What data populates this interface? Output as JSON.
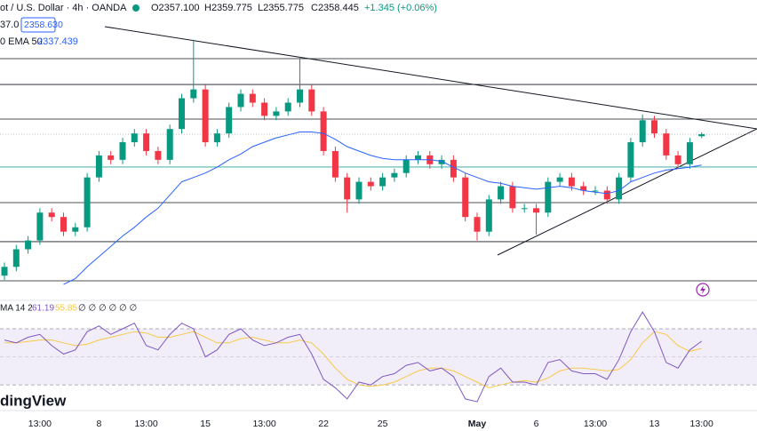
{
  "chart_data": {
    "type": "candlestick",
    "legend": {
      "symbol": "ot / U.S. Dollar · 4h · OANDA",
      "o": "O2357.100",
      "h": "H2359.775",
      "l": "L2355.775",
      "c": "C2358.445",
      "change": "+1.345 (+0.06%)",
      "line2": "37.0",
      "price_box": "2358.630",
      "ema_label": "0 EMA 50",
      "ema_value": "2337.439",
      "watermark": "dingView"
    },
    "categories": [
      null,
      null,
      null,
      "13:00",
      null,
      null,
      null,
      null,
      "8",
      null,
      null,
      null,
      "13:00",
      null,
      null,
      null,
      null,
      "15",
      null,
      null,
      null,
      null,
      "13:00",
      null,
      null,
      null,
      null,
      "22",
      null,
      null,
      null,
      null,
      "25",
      null,
      null,
      null,
      null,
      null,
      null,
      null,
      "May",
      null,
      null,
      null,
      null,
      "6",
      null,
      null,
      null,
      null,
      "13:00",
      null,
      null,
      null,
      null,
      "13",
      null,
      null,
      null,
      "13:00"
    ],
    "open": [
      2262,
      2268,
      2280,
      2286,
      2305,
      2302,
      2292,
      2295,
      2329,
      2344,
      2341,
      2353,
      2359,
      2347,
      2341,
      2362,
      2383,
      2389,
      2353,
      2359,
      2377,
      2386,
      2380,
      2371,
      2374,
      2380,
      2389,
      2374,
      2347,
      2329,
      2314,
      2326,
      2323,
      2329,
      2332,
      2341,
      2344,
      2338,
      2341,
      2329,
      2302,
      2292,
      2314,
      2323,
      2308,
      2308,
      2305,
      2326,
      2329,
      2323,
      2320,
      2320,
      2314,
      2329,
      2353,
      2368,
      2359,
      2344,
      2338,
      2357.1
    ],
    "high": [
      2271,
      2283,
      2289,
      2308,
      2308,
      2305,
      2298,
      2332,
      2347,
      2347,
      2356,
      2362,
      2362,
      2350,
      2365,
      2386,
      2423,
      2392,
      2362,
      2380,
      2389,
      2389,
      2383,
      2377,
      2383,
      2411,
      2392,
      2377,
      2350,
      2332,
      2329,
      2329,
      2332,
      2335,
      2344,
      2347,
      2347,
      2344,
      2344,
      2332,
      2305,
      2317,
      2326,
      2326,
      2311,
      2311,
      2329,
      2332,
      2332,
      2326,
      2323,
      2323,
      2332,
      2356,
      2372,
      2371,
      2362,
      2347,
      2356,
      2359.775
    ],
    "low": [
      2259,
      2265,
      2277,
      2283,
      2299,
      2289,
      2289,
      2292,
      2326,
      2338,
      2338,
      2350,
      2344,
      2338,
      2338,
      2359,
      2380,
      2350,
      2350,
      2356,
      2374,
      2377,
      2368,
      2368,
      2371,
      2377,
      2371,
      2344,
      2326,
      2305,
      2311,
      2320,
      2320,
      2326,
      2329,
      2338,
      2335,
      2335,
      2326,
      2299,
      2286,
      2289,
      2311,
      2305,
      2305,
      2290,
      2302,
      2323,
      2320,
      2317,
      2317,
      2311,
      2311,
      2326,
      2350,
      2356,
      2341,
      2335,
      2335,
      2355.775
    ],
    "close": [
      2268,
      2280,
      2286,
      2305,
      2302,
      2292,
      2295,
      2329,
      2344,
      2341,
      2353,
      2359,
      2347,
      2341,
      2362,
      2383,
      2389,
      2353,
      2359,
      2377,
      2386,
      2380,
      2371,
      2374,
      2380,
      2389,
      2374,
      2347,
      2329,
      2314,
      2326,
      2323,
      2329,
      2332,
      2341,
      2344,
      2338,
      2341,
      2329,
      2302,
      2292,
      2314,
      2323,
      2308,
      2308,
      2305,
      2326,
      2329,
      2323,
      2320,
      2320,
      2314,
      2329,
      2353,
      2368,
      2359,
      2344,
      2338,
      2353,
      2358.445
    ],
    "up_color": "#089981",
    "down_color": "#f23645",
    "ema": {
      "color": "#2962ff",
      "values": [
        null,
        null,
        null,
        null,
        null,
        2256,
        2260,
        2268,
        2275,
        2282,
        2289,
        2295,
        2302,
        2308,
        2317,
        2326,
        2329,
        2332,
        2336,
        2341,
        2345,
        2350,
        2353,
        2356,
        2358,
        2360,
        2360,
        2359,
        2355,
        2350,
        2347,
        2344,
        2342,
        2341,
        2341,
        2341,
        2341,
        2340,
        2336,
        2332,
        2329,
        2326,
        2325,
        2323,
        2322,
        2321,
        2322,
        2323,
        2322,
        2320,
        2319,
        2318,
        2320,
        2326,
        2329,
        2332,
        2334,
        2335,
        2336,
        2337.439
      ]
    },
    "levels": [
      2410,
      2392.4,
      2368.8,
      2311.8,
      2285.2,
      2258.5
    ],
    "level_color": "#131722",
    "support": 2336.1,
    "support_color": "#26a69a",
    "last_price": 2358.445,
    "ylim": [
      2250,
      2450
    ],
    "rsi": {
      "label": "MA 14 2",
      "value_label": "61.19",
      "signal_label": "55.85",
      "extra": "∅ ∅ ∅ ∅ ∅ ∅",
      "color": "#7e57c2",
      "signal_color": "#f7c948",
      "values": [
        62,
        60,
        64,
        66,
        58,
        52,
        55,
        68,
        72,
        66,
        70,
        74,
        58,
        55,
        66,
        74,
        70,
        50,
        55,
        66,
        70,
        62,
        58,
        60,
        64,
        66,
        52,
        34,
        28,
        20,
        32,
        30,
        36,
        38,
        44,
        46,
        40,
        42,
        36,
        20,
        18,
        36,
        42,
        32,
        32,
        30,
        46,
        48,
        40,
        38,
        38,
        34,
        48,
        68,
        82,
        68,
        46,
        42,
        55,
        61.19
      ],
      "signal": [
        60,
        60,
        61,
        62,
        62,
        60,
        58,
        59,
        62,
        64,
        66,
        68,
        67,
        64,
        64,
        66,
        68,
        64,
        60,
        60,
        63,
        64,
        62,
        60,
        60,
        62,
        60,
        52,
        42,
        34,
        30,
        29,
        30,
        32,
        36,
        40,
        42,
        42,
        40,
        36,
        32,
        28,
        30,
        32,
        33,
        32,
        35,
        40,
        42,
        42,
        41,
        40,
        41,
        48,
        60,
        68,
        66,
        58,
        54,
        55.85
      ],
      "bands": [
        70,
        50,
        30
      ],
      "ylim": [
        13,
        89
      ]
    }
  }
}
